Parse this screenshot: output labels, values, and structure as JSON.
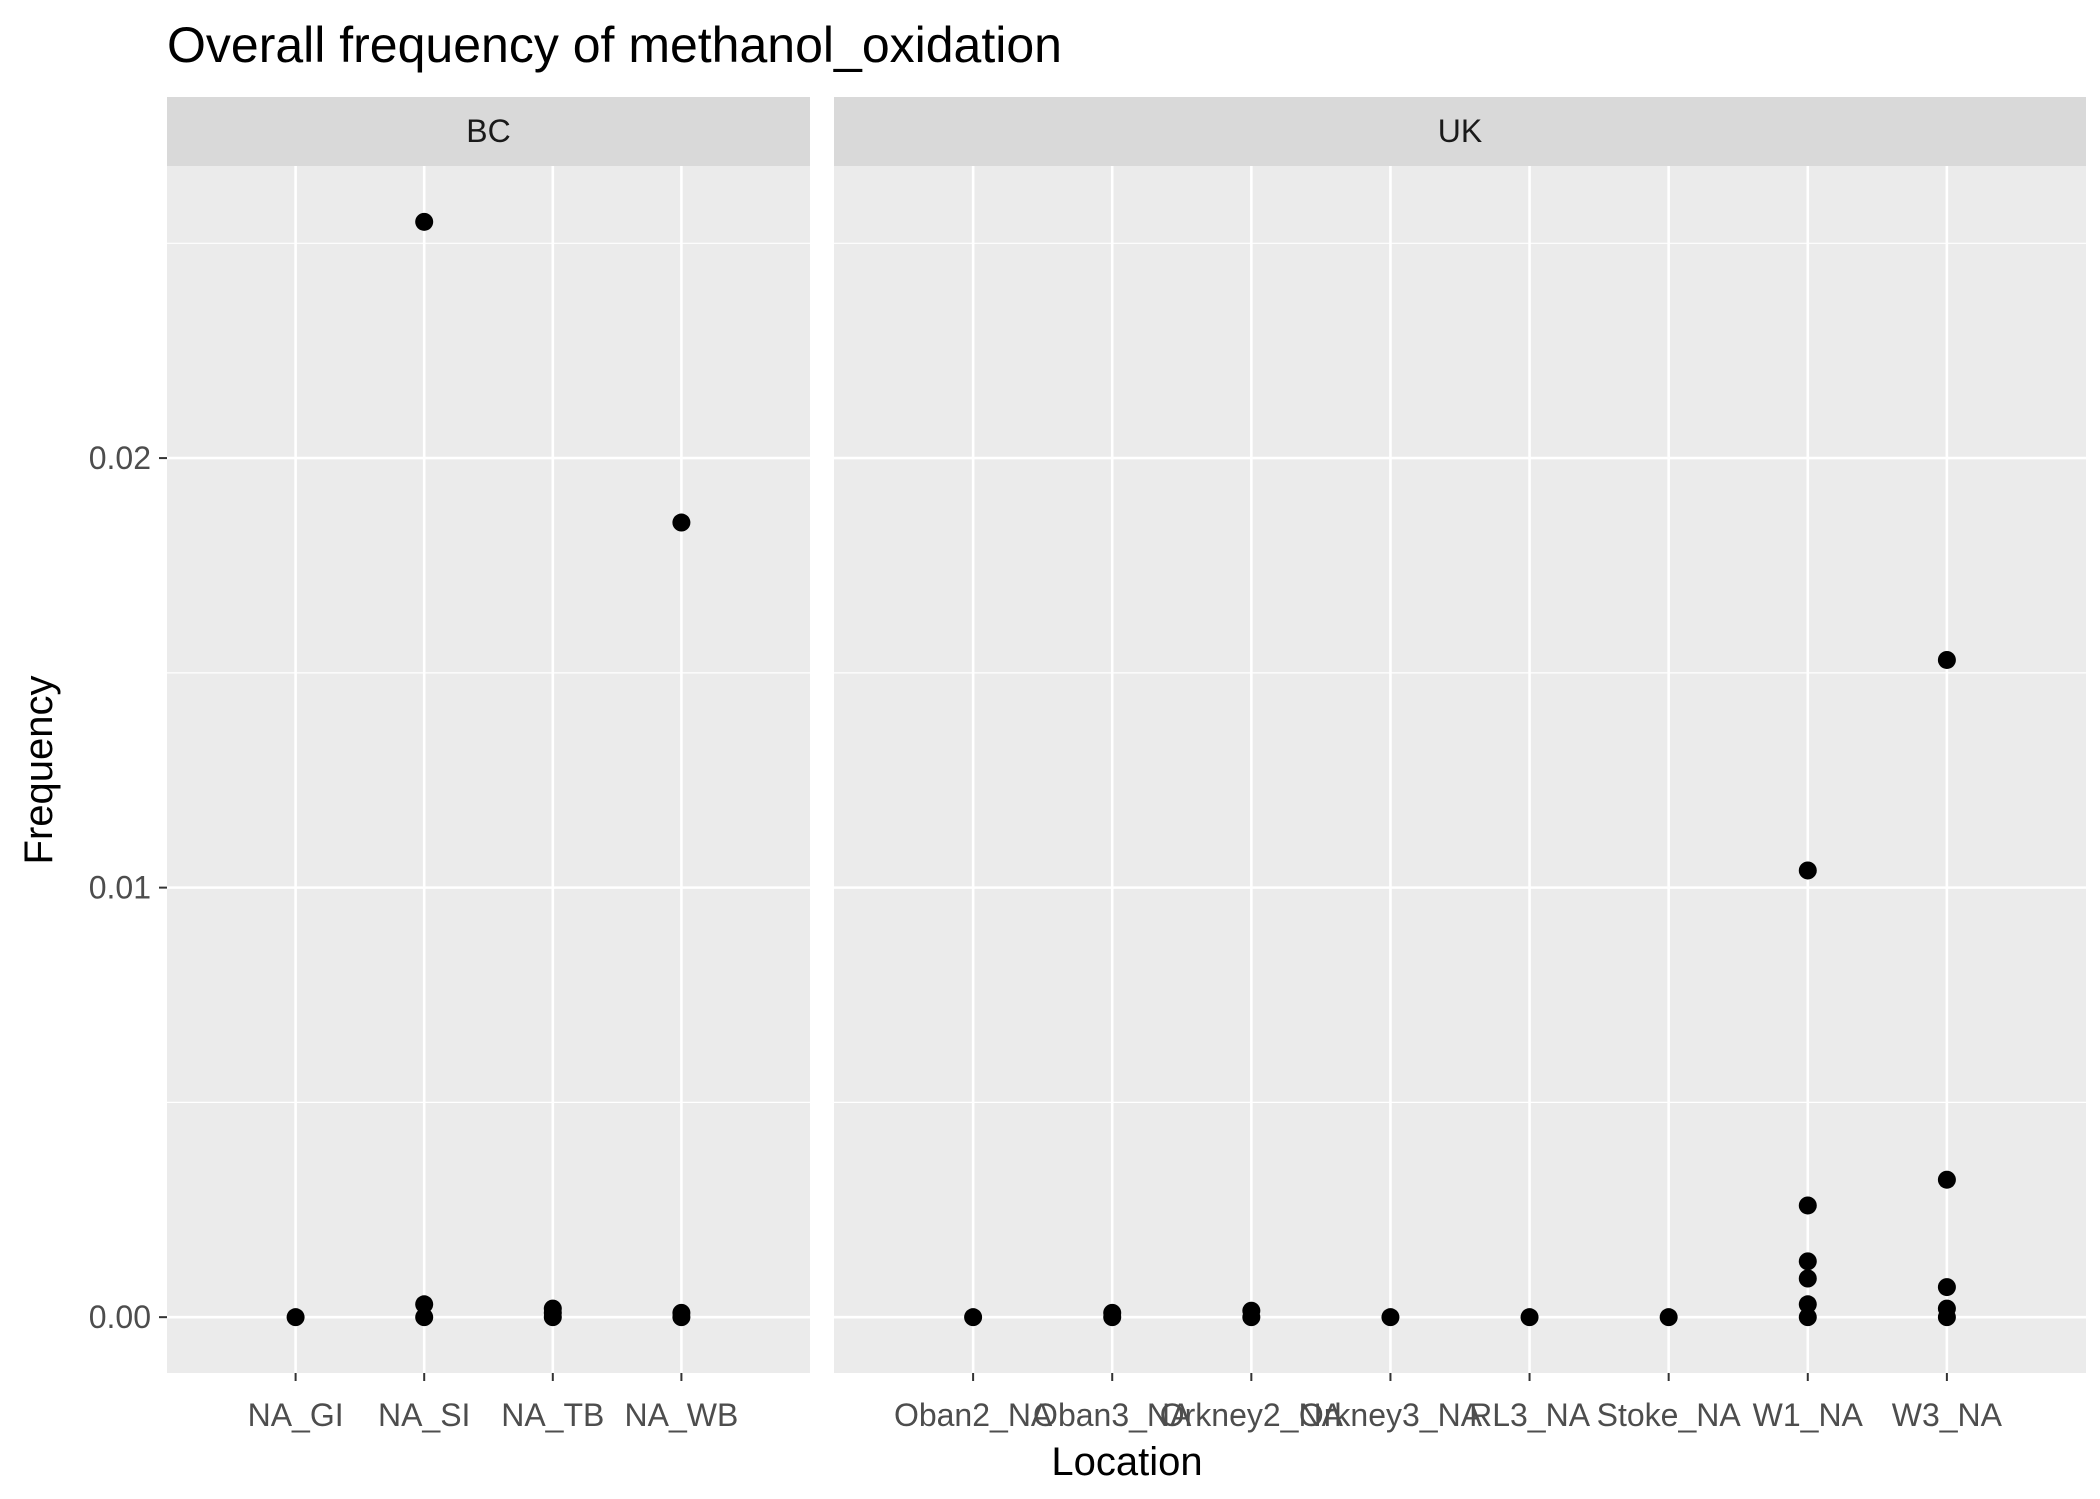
{
  "chart_data": {
    "type": "scatter",
    "title": "Overall frequency of methanol_oxidation",
    "xlabel": "Location",
    "ylabel": "Frequency",
    "ylim": [
      -0.0013,
      0.0268
    ],
    "yticks": [
      0.0,
      0.01,
      0.02
    ],
    "ytick_labels": [
      "0.00",
      "0.01",
      "0.02"
    ],
    "grid": true,
    "colors": {
      "panel_bg": "#ebebeb",
      "strip_bg": "#d9d9d9",
      "grid": "#ffffff",
      "point": "#000000"
    },
    "facets": [
      {
        "name": "BC",
        "categories": [
          "NA_GI",
          "NA_SI",
          "NA_TB",
          "NA_WB"
        ],
        "points": [
          {
            "x": "NA_GI",
            "y": 0.0
          },
          {
            "x": "NA_SI",
            "y": 0.0255
          },
          {
            "x": "NA_SI",
            "y": 0.0003
          },
          {
            "x": "NA_SI",
            "y": 0.0
          },
          {
            "x": "NA_TB",
            "y": 0.0002
          },
          {
            "x": "NA_TB",
            "y": 0.0001
          },
          {
            "x": "NA_TB",
            "y": 0.0
          },
          {
            "x": "NA_WB",
            "y": 0.0185
          },
          {
            "x": "NA_WB",
            "y": 0.0001
          },
          {
            "x": "NA_WB",
            "y": 0.0
          }
        ]
      },
      {
        "name": "UK",
        "categories": [
          "Oban2_NA",
          "Oban3_NA",
          "Orkney2_NA",
          "Orkney3_NA",
          "RL3_NA",
          "Stoke_NA",
          "W1_NA",
          "W3_NA"
        ],
        "points": [
          {
            "x": "Oban2_NA",
            "y": 0.0
          },
          {
            "x": "Oban3_NA",
            "y": 0.0001
          },
          {
            "x": "Oban3_NA",
            "y": 0.0
          },
          {
            "x": "Orkney2_NA",
            "y": 0.00015
          },
          {
            "x": "Orkney2_NA",
            "y": 0.0
          },
          {
            "x": "Orkney3_NA",
            "y": 0.0
          },
          {
            "x": "RL3_NA",
            "y": 0.0
          },
          {
            "x": "Stoke_NA",
            "y": 0.0
          },
          {
            "x": "W1_NA",
            "y": 0.0104
          },
          {
            "x": "W1_NA",
            "y": 0.0026
          },
          {
            "x": "W1_NA",
            "y": 0.0013
          },
          {
            "x": "W1_NA",
            "y": 0.0009
          },
          {
            "x": "W1_NA",
            "y": 0.0003
          },
          {
            "x": "W1_NA",
            "y": 0.0
          },
          {
            "x": "W3_NA",
            "y": 0.0153
          },
          {
            "x": "W3_NA",
            "y": 0.0032
          },
          {
            "x": "W3_NA",
            "y": 0.0007
          },
          {
            "x": "W3_NA",
            "y": 0.0002
          },
          {
            "x": "W3_NA",
            "y": 0.0
          }
        ]
      }
    ]
  }
}
